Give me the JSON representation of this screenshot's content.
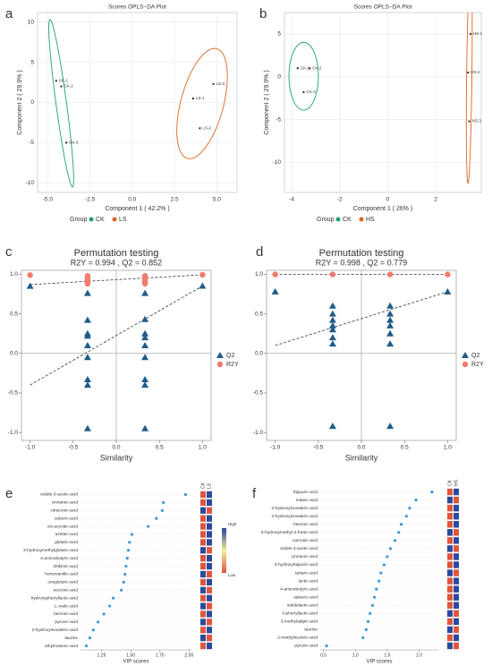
{
  "chart_data": [
    {
      "type": "scatter",
      "panel": "a",
      "title": "Scores OPLS−DA Plot",
      "xlabel": "Component 1 ( 42.2% )",
      "ylabel": "Component 2 ( 29.9% )",
      "xlim": [
        -5.6,
        6.2
      ],
      "ylim": [
        -11.2,
        11.2
      ],
      "xticks": [
        {
          "value": -5,
          "label": "-5.0"
        },
        -2.5,
        {
          "value": 0,
          "label": "0.0"
        },
        2.5,
        {
          "value": 5,
          "label": "5.0"
        }
      ],
      "yticks": [
        -10,
        -5,
        0,
        5,
        10
      ],
      "grid": true,
      "ellipse": true,
      "legend": "bottom",
      "legend_title": "Group",
      "series": [
        {
          "name": "CK",
          "color": "#1f9e78",
          "marker": "circle",
          "x": [
            -4.5,
            -4.2,
            -3.9
          ],
          "values": [
            2.7,
            2.0,
            -5.0
          ],
          "labels": [
            "CK-1",
            "CK-2",
            "CK-3"
          ]
        },
        {
          "name": "LS",
          "color": "#d9661f",
          "marker": "circle",
          "x": [
            3.6,
            4.0,
            4.8
          ],
          "values": [
            0.5,
            -3.2,
            2.3
          ],
          "labels": [
            "LS-1",
            "LS-2",
            "LS-3"
          ]
        }
      ]
    },
    {
      "type": "scatter",
      "panel": "b",
      "title": "Scores OPLS−DA Plot",
      "xlabel": "Component 1 ( 26% )",
      "ylabel": "Component 2 ( 29.9% )",
      "xlim": [
        -4.3,
        3.9
      ],
      "ylim": [
        -13.5,
        7.5
      ],
      "xticks": [
        -4,
        -2,
        0,
        2
      ],
      "yticks": [
        -10,
        -5,
        0,
        5
      ],
      "grid": true,
      "ellipse": true,
      "legend": "bottom",
      "legend_title": "Group",
      "series": [
        {
          "name": "CK",
          "color": "#1f9e78",
          "marker": "circle",
          "x": [
            -3.75,
            -3.25,
            -3.5
          ],
          "values": [
            1.0,
            1.0,
            -1.8
          ],
          "labels": [
            "CK-1",
            "CK-2",
            "CK-3"
          ]
        },
        {
          "name": "HS",
          "color": "#d9661f",
          "marker": "circle",
          "x": [
            3.45,
            3.35,
            3.4
          ],
          "values": [
            5.0,
            0.5,
            -5.2
          ],
          "labels": [
            "HS-1",
            "HS-2",
            "HS-3"
          ]
        }
      ]
    },
    {
      "type": "scatter",
      "panel": "c",
      "title": "Permutation testing",
      "subtitle": "R2Y = 0.994 , Q2 = 0.852",
      "xlabel": "Similarity",
      "xlim": [
        -1.1,
        1.1
      ],
      "ylim": [
        -1.1,
        1.05
      ],
      "xticks": [
        {
          "value": -1,
          "label": "-1.0"
        },
        -0.5,
        {
          "value": 0,
          "label": "0.0"
        },
        0.5,
        {
          "value": 1,
          "label": "1.0"
        }
      ],
      "yticks": [
        {
          "value": -1,
          "label": "-1.0"
        },
        -0.5,
        {
          "value": 0,
          "label": "0.0"
        },
        0.5,
        {
          "value": 1,
          "label": "1.0"
        }
      ],
      "grid": false,
      "reflines": true,
      "legend": "right",
      "series": [
        {
          "name": "Q2",
          "color": "#1f5c8a",
          "marker": "triangle",
          "x": [
            -1,
            -0.333,
            -0.333,
            -0.333,
            -0.333,
            -0.333,
            -0.333,
            -0.333,
            -0.333,
            -0.333,
            0.333,
            0.333,
            0.333,
            0.333,
            0.333,
            0.333,
            0.333,
            0.333,
            0.333,
            1
          ],
          "values": [
            0.85,
            0.76,
            0.42,
            0.25,
            0.22,
            0.1,
            -0.05,
            -0.33,
            -0.4,
            -0.95,
            0.76,
            0.43,
            0.25,
            0.2,
            0.1,
            -0.05,
            -0.33,
            -0.4,
            -0.95,
            0.852
          ],
          "trend_x": [
            -1,
            1
          ],
          "trend_y": [
            -0.4,
            0.852
          ]
        },
        {
          "name": "R2Y",
          "color": "#f07c6c",
          "marker": "circle",
          "x": [
            -1,
            -0.333,
            -0.333,
            -0.333,
            -0.333,
            -0.333,
            -0.333,
            0.333,
            0.333,
            0.333,
            0.333,
            0.333,
            0.333,
            1
          ],
          "values": [
            0.99,
            0.98,
            0.96,
            0.94,
            0.92,
            0.9,
            0.88,
            0.98,
            0.96,
            0.94,
            0.92,
            0.9,
            0.88,
            0.994
          ],
          "trend_x": [
            -1,
            1
          ],
          "trend_y": [
            0.87,
            0.994
          ]
        }
      ]
    },
    {
      "type": "scatter",
      "panel": "d",
      "title": "Permutation testing",
      "subtitle": "R2Y = 0.998 , Q2 = 0.779",
      "xlabel": "Similarity",
      "xlim": [
        -1.1,
        1.1
      ],
      "ylim": [
        -1.1,
        1.05
      ],
      "xticks": [
        {
          "value": -1,
          "label": "-1.0"
        },
        -0.5,
        {
          "value": 0,
          "label": "0.0"
        },
        0.5,
        {
          "value": 1,
          "label": "1.0"
        }
      ],
      "yticks": [
        {
          "value": -1,
          "label": "-1.0"
        },
        -0.5,
        {
          "value": 0,
          "label": "0.0"
        },
        0.5,
        {
          "value": 1,
          "label": "1.0"
        }
      ],
      "grid": false,
      "reflines": true,
      "legend": "right",
      "series": [
        {
          "name": "Q2",
          "color": "#1f5c8a",
          "marker": "triangle",
          "x": [
            -1,
            -0.333,
            -0.333,
            -0.333,
            -0.333,
            -0.333,
            -0.333,
            -0.333,
            -0.333,
            0.333,
            0.333,
            0.333,
            0.333,
            0.333,
            0.333,
            0.333,
            1
          ],
          "values": [
            0.78,
            0.6,
            0.5,
            0.42,
            0.35,
            0.3,
            0.2,
            0.12,
            -0.92,
            0.6,
            0.5,
            0.42,
            0.35,
            0.25,
            0.12,
            -0.92,
            0.779
          ],
          "trend_x": [
            -1,
            1
          ],
          "trend_y": [
            0.1,
            0.779
          ]
        },
        {
          "name": "R2Y",
          "color": "#f07c6c",
          "marker": "circle",
          "x": [
            -1,
            -0.333,
            0.333,
            1
          ],
          "values": [
            0.998,
            0.998,
            0.998,
            0.998
          ],
          "trend_x": [
            -1,
            1
          ],
          "trend_y": [
            0.998,
            0.998
          ]
        }
      ]
    },
    {
      "type": "dot",
      "panel": "e",
      "xlabel": "VIP scores",
      "color": "#3a9ad9",
      "categories": [
        "indole-3-acetic-acid",
        "cinnamic-acid",
        "citraconic-acid",
        "suberic-acid",
        "cis-aconitic-acid",
        "azelaic-acid",
        "glutaric-acid",
        "3-hydroxymethylglutaric-acid",
        "4-aminobutyric-acid",
        "shikimic-acid",
        "homovanillic-acid",
        "oxoglutaric-acid",
        "succinic-acid",
        "hydroxyphenyllactic-acid",
        "L-malic-acid",
        "benzoic-acid",
        "pyruvic-acid",
        "2-hydroxyisovaleric-acid",
        "taurine",
        "ethylmalonic-acid"
      ],
      "values": [
        1.97,
        1.78,
        1.77,
        1.72,
        1.65,
        1.51,
        1.49,
        1.48,
        1.47,
        1.46,
        1.45,
        1.44,
        1.42,
        1.35,
        1.32,
        1.27,
        1.22,
        1.18,
        1.15,
        1.12
      ],
      "xlim": [
        1.07,
        2.02
      ],
      "xticks": [
        1.25,
        {
          "value": 1.5,
          "label": "1.50"
        },
        1.75,
        {
          "value": 2,
          "label": "2.00"
        }
      ],
      "heatmap": {
        "columns": [
          "CK",
          "LS"
        ],
        "values": [
          [
            -1,
            1
          ],
          [
            -1,
            1
          ],
          [
            1,
            -1
          ],
          [
            -1,
            1
          ],
          [
            -1,
            1
          ],
          [
            -1,
            1
          ],
          [
            -1,
            1
          ],
          [
            1,
            -1
          ],
          [
            -1,
            1
          ],
          [
            -1,
            1
          ],
          [
            1,
            -1
          ],
          [
            -1,
            1
          ],
          [
            1,
            -1
          ],
          [
            -1,
            1
          ],
          [
            1,
            -1
          ],
          [
            -1,
            1
          ],
          [
            1,
            -1
          ],
          [
            -1,
            1
          ],
          [
            1,
            -1
          ],
          [
            -1,
            1
          ]
        ]
      },
      "colorbar": {
        "high": "High",
        "low": "Low"
      }
    },
    {
      "type": "dot",
      "panel": "f",
      "xlabel": "VIP scores",
      "color": "#3a9ad9",
      "categories": [
        "hippuric-acid",
        "maleic-acid",
        "2-hydroxyisovaleric-acid",
        "3-hydroxyisovaleric-acid",
        "benzoic-acid",
        "5-hydroxymethyl-2-furoic-acid",
        "carnosic-acid",
        "indole-3-acetic-acid",
        "cinnamic-acid",
        "4-hydroxyhippuric-acid",
        "tartaric-acid",
        "lactic-acid",
        "4-aminobutyric-acid",
        "sebacic-acid",
        "indolelactic-acid",
        "3-phenyllactic-acid",
        "3-methyladipic-acid",
        "taurine",
        "2-methylisocitric-acid",
        "pyruvic-acid"
      ],
      "values": [
        2.2,
        1.95,
        1.85,
        1.8,
        1.72,
        1.68,
        1.62,
        1.55,
        1.5,
        1.45,
        1.4,
        1.37,
        1.33,
        1.3,
        1.27,
        1.23,
        1.2,
        1.17,
        1.12,
        0.55
      ],
      "xlim": [
        0.45,
        2.3
      ],
      "xticks": [
        0.5,
        {
          "value": 1,
          "label": "1.0"
        },
        1.5,
        {
          "value": 2,
          "label": "2.0"
        }
      ],
      "heatmap": {
        "columns": [
          "CK",
          "HS"
        ],
        "values": [
          [
            -1,
            1
          ],
          [
            1,
            -1
          ],
          [
            -1,
            1
          ],
          [
            -1,
            1
          ],
          [
            -1,
            1
          ],
          [
            1,
            -1
          ],
          [
            -1,
            1
          ],
          [
            1,
            -1
          ],
          [
            -1,
            1
          ],
          [
            -1,
            1
          ],
          [
            1,
            -1
          ],
          [
            -1,
            1
          ],
          [
            -1,
            1
          ],
          [
            -1,
            1
          ],
          [
            -1,
            1
          ],
          [
            1,
            -1
          ],
          [
            -1,
            1
          ],
          [
            1,
            -1
          ],
          [
            -1,
            1
          ],
          [
            1,
            -1
          ]
        ]
      }
    }
  ]
}
